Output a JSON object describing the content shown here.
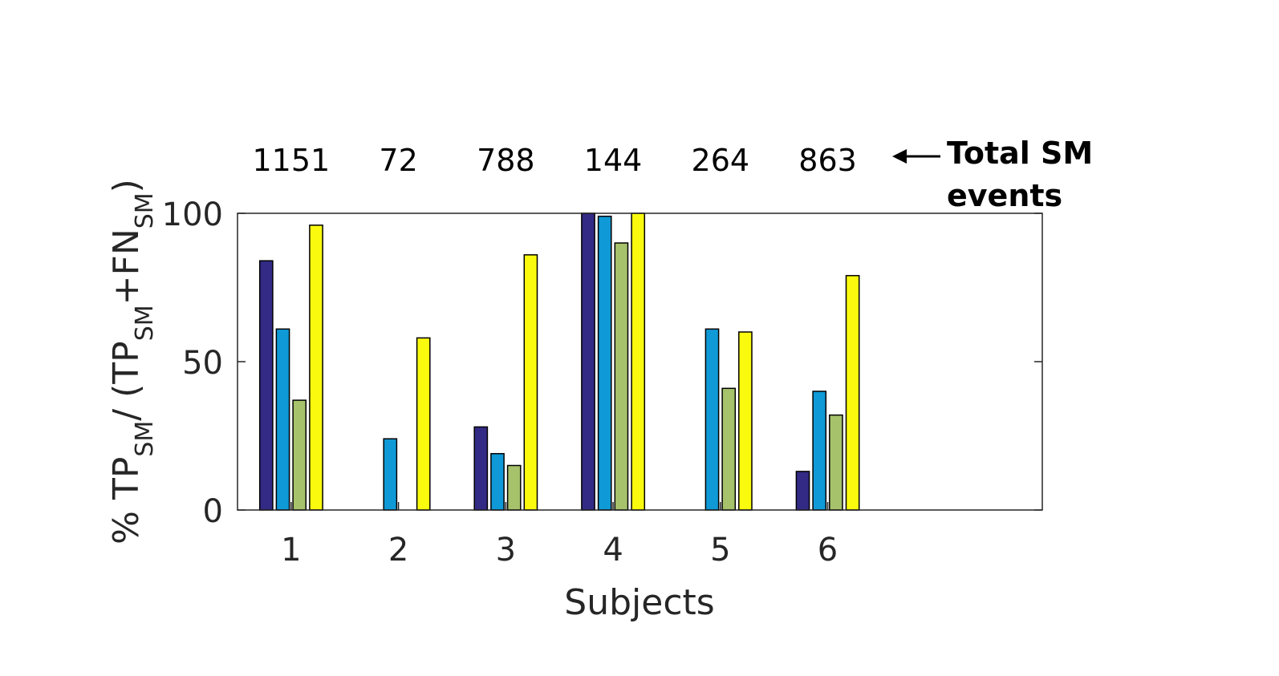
{
  "chart_data": {
    "type": "bar",
    "title": "",
    "xlabel": "Subjects",
    "ylabel": {
      "parts": [
        {
          "text": "% TP",
          "sub": false
        },
        {
          "text": "SM",
          "sub": true
        },
        {
          "text": "/ (TP",
          "sub": false
        },
        {
          "text": "SM",
          "sub": true
        },
        {
          "text": "+FN",
          "sub": false
        },
        {
          "text": "SM",
          "sub": true
        },
        {
          "text": ")",
          "sub": false
        }
      ]
    },
    "categories": [
      "1",
      "2",
      "3",
      "4",
      "5",
      "6"
    ],
    "xlim": [
      0.5,
      8.0
    ],
    "ylim": [
      0,
      100
    ],
    "yticks": [
      0,
      50,
      100
    ],
    "ytick_labels": [
      "0",
      "50",
      "100"
    ],
    "grid": false,
    "series": [
      {
        "name": "series-1",
        "color": "#332a85",
        "values": [
          84,
          0,
          28,
          100,
          0,
          13
        ]
      },
      {
        "name": "series-2",
        "color": "#0f99d6",
        "values": [
          61,
          24,
          19,
          99,
          61,
          40
        ]
      },
      {
        "name": "series-3",
        "color": "#a6c26b",
        "values": [
          37,
          0,
          15,
          90,
          41,
          32
        ]
      },
      {
        "name": "series-4",
        "color": "#fafa0f",
        "values": [
          96,
          58,
          86,
          100,
          60,
          79
        ]
      }
    ],
    "top_counts": [
      "1151",
      "72",
      "788",
      "144",
      "264",
      "863"
    ],
    "annotation": {
      "line1": "Total SM",
      "line2": "events",
      "arrow": "←"
    }
  }
}
